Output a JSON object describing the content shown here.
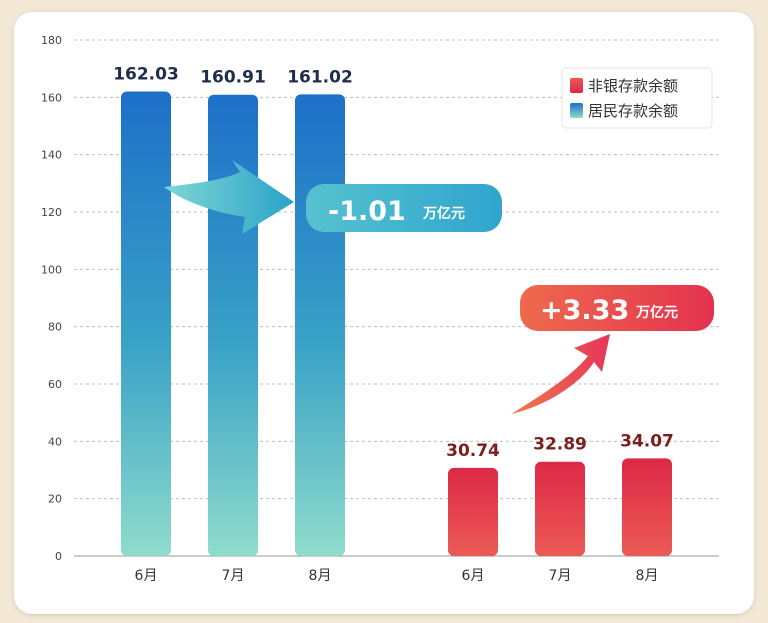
{
  "chart_data": {
    "type": "bar",
    "ylim": [
      0,
      180
    ],
    "yticks": [
      0,
      20,
      40,
      60,
      80,
      100,
      120,
      140,
      160,
      180
    ],
    "grid": true,
    "legend_position": "top-right",
    "series": [
      {
        "name": "居民存款余额",
        "categories": [
          "6月",
          "7月",
          "8月"
        ],
        "values": [
          162.03,
          160.91,
          161.02
        ],
        "value_labels": [
          "162.03",
          "160.91",
          "161.02"
        ],
        "color_top": "#1d6fc8",
        "color_bottom": "#8fdccb",
        "label_color": "#1e2d4a"
      },
      {
        "name": "非银存款余额",
        "categories": [
          "6月",
          "7月",
          "8月"
        ],
        "values": [
          30.74,
          32.89,
          34.07
        ],
        "value_labels": [
          "30.74",
          "32.89",
          "34.07"
        ],
        "color_top": "#dc2946",
        "color_bottom": "#ec5a55",
        "label_color": "#7a1e1e"
      }
    ],
    "annotations": [
      {
        "text": "-1.01",
        "unit": "万亿元",
        "direction": "down",
        "color": "#3cb6cf"
      },
      {
        "text": "+3.33",
        "unit": "万亿元",
        "direction": "up",
        "color": "#e8414f"
      }
    ]
  }
}
